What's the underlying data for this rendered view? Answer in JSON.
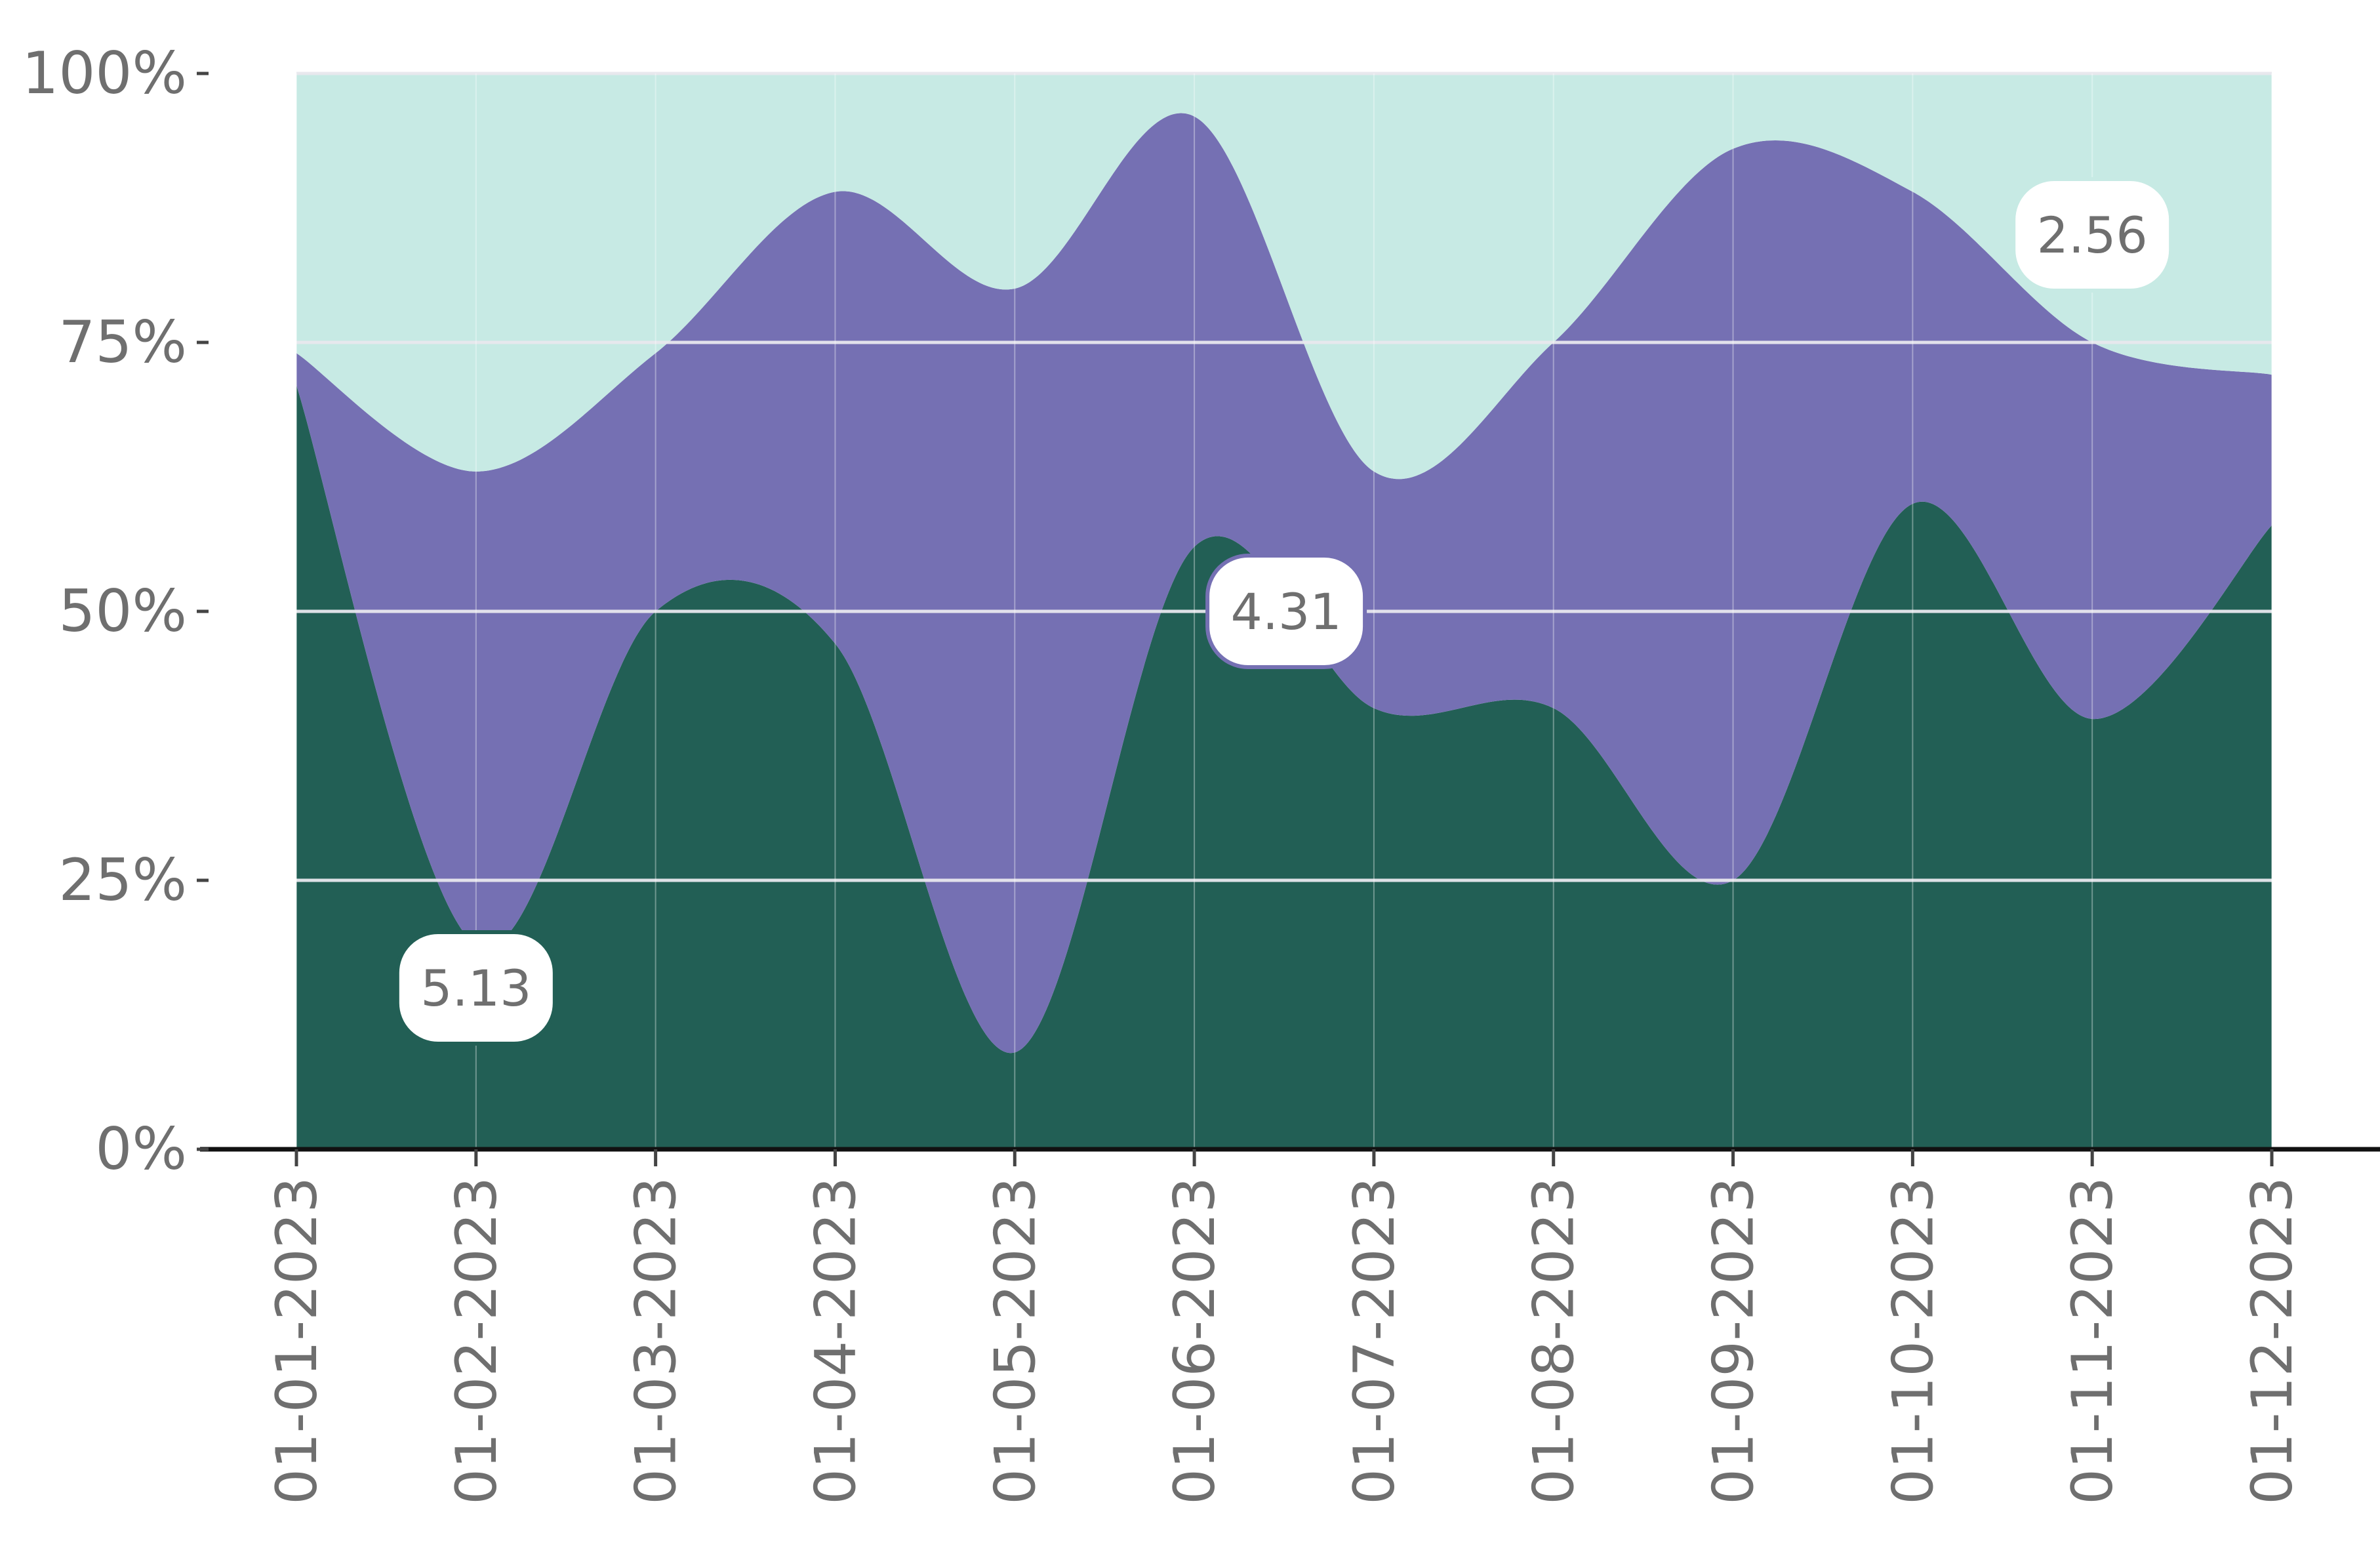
{
  "chart_data": {
    "type": "area",
    "stacking": "percent",
    "curve": "smooth",
    "x": [
      "01-01-2023",
      "01-02-2023",
      "01-03-2023",
      "01-04-2023",
      "01-05-2023",
      "01-06-2023",
      "01-07-2023",
      "01-08-2023",
      "01-09-2023",
      "01-10-2023",
      "01-11-2023",
      "01-12-2023"
    ],
    "y_ticks": [
      "0%",
      "25%",
      "50%",
      "75%",
      "100%"
    ],
    "ylim": [
      0,
      100
    ],
    "grid": true,
    "legend": "none",
    "series": [
      {
        "color": "#225f55",
        "values": [
          71,
          19,
          50,
          47,
          9,
          56,
          41,
          41,
          25,
          60,
          40,
          58
        ]
      },
      {
        "color": "#7570b3",
        "values": [
          3,
          44,
          24,
          42,
          71,
          40,
          22,
          34,
          68,
          29,
          35,
          14
        ]
      },
      {
        "color": "#c7eae4",
        "values": [
          26,
          37,
          26,
          11,
          20,
          4,
          37,
          25,
          7,
          11,
          25,
          28
        ]
      }
    ],
    "annotations": [
      {
        "text": "5.13",
        "x": "01-02-2023",
        "y_percent": 15,
        "series_index": 0
      },
      {
        "text": "4.31",
        "x": "01-06-2023",
        "y_percent": 50,
        "series_index": 1
      },
      {
        "text": "2.56",
        "x": "01-11-2023",
        "y_percent": 85,
        "series_index": 2
      }
    ]
  }
}
